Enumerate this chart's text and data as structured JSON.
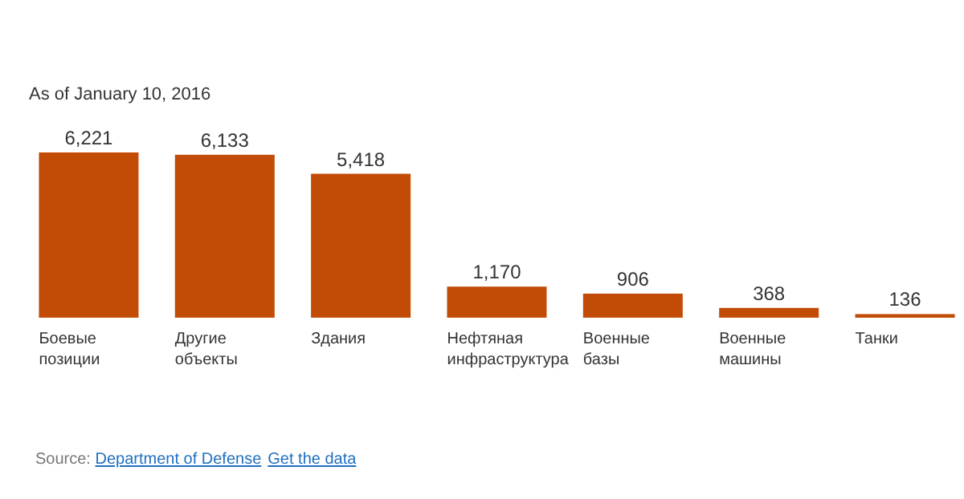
{
  "chart_data": {
    "type": "bar",
    "title": "As of January 10, 2016",
    "categories": [
      "Боевые позиции",
      "Другие объекты",
      "Здания",
      "Нефтяная инфраструктура",
      "Военные базы",
      "Военные машины",
      "Танки"
    ],
    "values": [
      6221,
      6133,
      5418,
      1170,
      906,
      368,
      136
    ],
    "color": "#c24b05",
    "value_labels": [
      "6,221",
      "6,133",
      "5,418",
      "1,170",
      "906",
      "368",
      "136"
    ],
    "annotations": [
      "Source: Department of Defense",
      "Get the data"
    ]
  }
}
